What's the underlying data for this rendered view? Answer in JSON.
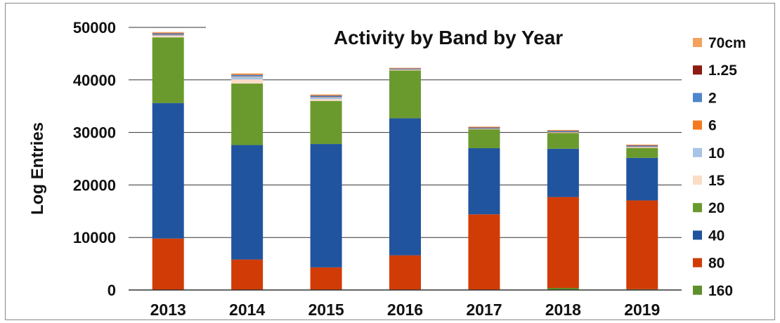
{
  "chart_data": {
    "type": "bar",
    "stacked": true,
    "title": "Activity by Band by Year",
    "xlabel": "",
    "ylabel": "Log Entries",
    "ylim": [
      0,
      50000
    ],
    "y_ticks": [
      "0",
      "10000",
      "20000",
      "30000",
      "40000",
      "50000"
    ],
    "categories": [
      "2013",
      "2014",
      "2015",
      "2016",
      "2017",
      "2018",
      "2019"
    ],
    "grid": "horizontal",
    "legend_position": "right",
    "series": [
      {
        "name": "160",
        "color": "#5f8f2c",
        "values": [
          0,
          0,
          0,
          0,
          0,
          400,
          150
        ]
      },
      {
        "name": "80",
        "color": "#d13c06",
        "values": [
          9800,
          5800,
          4300,
          6600,
          14400,
          17300,
          16900
        ]
      },
      {
        "name": "40",
        "color": "#21549f",
        "values": [
          25800,
          21800,
          23500,
          26100,
          12600,
          9200,
          8100
        ]
      },
      {
        "name": "20",
        "color": "#6a9a2d",
        "values": [
          12500,
          11700,
          8200,
          9100,
          3600,
          3000,
          1900
        ]
      },
      {
        "name": "15",
        "color": "#fbdcc6",
        "values": [
          250,
          800,
          350,
          80,
          50,
          60,
          100
        ]
      },
      {
        "name": "10",
        "color": "#a7c4e6",
        "values": [
          150,
          500,
          300,
          70,
          40,
          50,
          80
        ]
      },
      {
        "name": "6",
        "color": "#f47a20",
        "values": [
          100,
          80,
          80,
          50,
          50,
          70,
          80
        ]
      },
      {
        "name": "2",
        "color": "#4d86cc",
        "values": [
          250,
          250,
          250,
          150,
          180,
          200,
          200
        ]
      },
      {
        "name": "1.25",
        "color": "#8c1c12",
        "values": [
          60,
          60,
          60,
          50,
          40,
          40,
          40
        ]
      },
      {
        "name": "70cm",
        "color": "#f3a15c",
        "values": [
          200,
          250,
          200,
          100,
          150,
          150,
          150
        ]
      }
    ],
    "legend_order": [
      "70cm",
      "1.25",
      "2",
      "6",
      "10",
      "15",
      "20",
      "40",
      "80",
      "160"
    ]
  }
}
